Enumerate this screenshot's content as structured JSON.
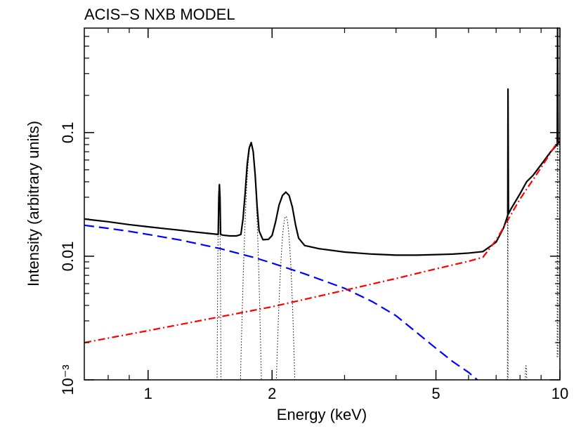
{
  "chart_data": {
    "type": "line",
    "title": "ACIS−S NXB MODEL",
    "xlabel": "Energy (keV)",
    "ylabel": "Intensity (arbitrary units)",
    "x_scale": "log",
    "y_scale": "log",
    "xlim": [
      0.7,
      10
    ],
    "ylim": [
      0.001,
      0.7
    ],
    "x_ticks": [
      {
        "value": 1,
        "label": "1"
      },
      {
        "value": 2,
        "label": "2"
      },
      {
        "value": 5,
        "label": "5"
      },
      {
        "value": 10,
        "label": "10"
      }
    ],
    "y_ticks": [
      {
        "value": 0.001,
        "label": "10⁻³"
      },
      {
        "value": 0.01,
        "label": "0.01"
      },
      {
        "value": 0.1,
        "label": "0.1"
      }
    ],
    "grid": false,
    "colors": {
      "total": "#000000",
      "exp_component": "#0000ff",
      "power_component": "#ff0000",
      "lines": "#000000"
    },
    "series": [
      {
        "key": "total",
        "style": "solid",
        "x": [
          0.7,
          0.8,
          0.9,
          1.0,
          1.1,
          1.2,
          1.3,
          1.4,
          1.48,
          1.485,
          1.49,
          1.495,
          1.5,
          1.52,
          1.58,
          1.64,
          1.68,
          1.7,
          1.72,
          1.74,
          1.76,
          1.78,
          1.8,
          1.82,
          1.84,
          1.86,
          1.9,
          1.96,
          2.0,
          2.04,
          2.08,
          2.12,
          2.16,
          2.2,
          2.24,
          2.28,
          2.32,
          2.4,
          2.6,
          3.0,
          3.5,
          4.0,
          4.5,
          5.0,
          5.5,
          6.0,
          6.5,
          7.0,
          7.3,
          7.42,
          7.47,
          7.48,
          7.5,
          7.6,
          8.0,
          8.3,
          8.6,
          9.0,
          9.5,
          9.85,
          9.87,
          9.9,
          10.0
        ],
        "y": [
          0.02,
          0.019,
          0.018,
          0.0173,
          0.0167,
          0.0162,
          0.0157,
          0.0153,
          0.015,
          0.03,
          0.038,
          0.03,
          0.015,
          0.0148,
          0.0146,
          0.0146,
          0.015,
          0.02,
          0.032,
          0.055,
          0.075,
          0.083,
          0.07,
          0.045,
          0.025,
          0.016,
          0.0136,
          0.0137,
          0.0147,
          0.019,
          0.026,
          0.031,
          0.033,
          0.031,
          0.025,
          0.018,
          0.014,
          0.0122,
          0.0115,
          0.0108,
          0.0104,
          0.0102,
          0.0102,
          0.0103,
          0.0104,
          0.0106,
          0.0109,
          0.013,
          0.017,
          0.02,
          0.0215,
          0.225,
          0.022,
          0.024,
          0.032,
          0.04,
          0.045,
          0.055,
          0.07,
          0.08,
          0.7,
          0.082,
          0.085
        ]
      },
      {
        "key": "exp_component",
        "style": "dashed",
        "x": [
          0.7,
          0.8,
          0.9,
          1.0,
          1.2,
          1.5,
          1.8,
          2.0,
          2.4,
          3.0,
          3.5,
          4.0,
          4.5,
          5.0,
          5.5,
          6.0,
          6.3
        ],
        "y": [
          0.0178,
          0.0168,
          0.0159,
          0.015,
          0.0135,
          0.0115,
          0.0098,
          0.0088,
          0.0072,
          0.0055,
          0.0043,
          0.0033,
          0.0024,
          0.0018,
          0.0014,
          0.00115,
          0.001
        ]
      },
      {
        "key": "power_component",
        "style": "dashdot",
        "x": [
          0.7,
          1.0,
          2.0,
          3.0,
          4.0,
          5.0,
          6.0,
          6.5,
          7.0,
          7.5,
          8.0,
          9.0,
          10.0
        ],
        "y": [
          0.002,
          0.0025,
          0.0039,
          0.0053,
          0.0066,
          0.0079,
          0.0091,
          0.0098,
          0.0135,
          0.02,
          0.029,
          0.052,
          0.09
        ]
      },
      {
        "key": "lines",
        "style": "dotted",
        "peaks": [
          {
            "center": 1.487,
            "width": 0.006,
            "peak": 0.038
          },
          {
            "center": 1.78,
            "width": 0.035,
            "peak": 0.082
          },
          {
            "center": 2.16,
            "width": 0.045,
            "peak": 0.021
          },
          {
            "center": 7.47,
            "width": 0.004,
            "peak": 0.225
          },
          {
            "center": 8.27,
            "width": 0.05,
            "peak": 0.0013
          },
          {
            "center": 9.87,
            "width": 0.006,
            "peak": 0.7
          }
        ]
      }
    ]
  }
}
